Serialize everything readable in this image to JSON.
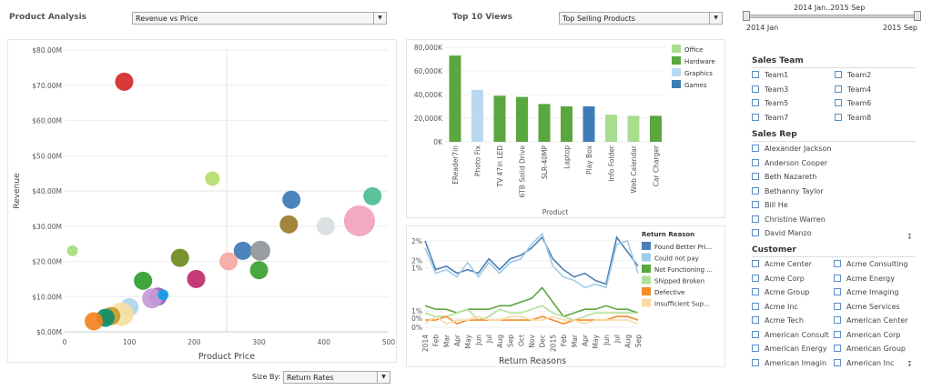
{
  "header": {
    "product_analysis_title": "Product Analysis",
    "scatter_select": "Revenue vs Price",
    "top10_title": "Top 10 Views",
    "top10_select": "Top Selling Products",
    "slider_range": "2014 Jan..2015 Sep",
    "slider_start": "2014 Jan",
    "slider_end": "2015 Sep"
  },
  "scatter": {
    "ylabel": "Revenue",
    "xlabel": "Product Price",
    "size_by_label": "Size By:",
    "size_by_select": "Return Rates",
    "chart_data": {
      "type": "scatter",
      "title": "Revenue vs Price",
      "xlabel": "Product Price",
      "ylabel": "Revenue",
      "xlim": [
        0,
        500
      ],
      "ylim": [
        0,
        80
      ],
      "x_ticks": [
        "0",
        "100",
        "200",
        "300",
        "400",
        "500"
      ],
      "y_ticks": [
        "$0.00M",
        "$10.00M",
        "$20.00M",
        "$30.00M",
        "$40.00M",
        "$50.00M",
        "$60.00M",
        "$70.00M",
        "$80.00M"
      ],
      "points": [
        {
          "x": 92,
          "y": 71,
          "r": 10,
          "color": "#d62728"
        },
        {
          "x": 228,
          "y": 43.5,
          "r": 8,
          "color": "#b5dc6e"
        },
        {
          "x": 12,
          "y": 23,
          "r": 6,
          "color": "#a4dc80"
        },
        {
          "x": 350,
          "y": 37.5,
          "r": 10,
          "color": "#3e7ab8"
        },
        {
          "x": 475,
          "y": 38.5,
          "r": 10,
          "color": "#4dbd93"
        },
        {
          "x": 346,
          "y": 30.5,
          "r": 10,
          "color": "#9b7a2a"
        },
        {
          "x": 403,
          "y": 30,
          "r": 10,
          "color": "#d9dde0"
        },
        {
          "x": 455,
          "y": 31.5,
          "r": 17,
          "color": "#f2a1bf"
        },
        {
          "x": 275,
          "y": 23,
          "r": 10,
          "color": "#3e7ab8"
        },
        {
          "x": 302,
          "y": 23,
          "r": 11,
          "color": "#8f969b"
        },
        {
          "x": 253,
          "y": 20,
          "r": 10,
          "color": "#f6a9a2"
        },
        {
          "x": 300,
          "y": 17.5,
          "r": 10,
          "color": "#39a030"
        },
        {
          "x": 178,
          "y": 21,
          "r": 10,
          "color": "#6d8a1e"
        },
        {
          "x": 203,
          "y": 15,
          "r": 10,
          "color": "#c02a6e"
        },
        {
          "x": 121,
          "y": 14.5,
          "r": 10,
          "color": "#319d2c"
        },
        {
          "x": 144,
          "y": 10,
          "r": 10,
          "color": "#9463b8"
        },
        {
          "x": 135,
          "y": 9.5,
          "r": 11,
          "color": "#c59ad8"
        },
        {
          "x": 152,
          "y": 10.5,
          "r": 6,
          "color": "#10a0e8"
        },
        {
          "x": 100,
          "y": 7,
          "r": 10,
          "color": "#aed4ef"
        },
        {
          "x": 88,
          "y": 5,
          "r": 13,
          "color": "#f7dfa0"
        },
        {
          "x": 72,
          "y": 4.5,
          "r": 10,
          "color": "#c49a2c"
        },
        {
          "x": 63,
          "y": 4,
          "r": 10,
          "color": "#0d8d6a"
        },
        {
          "x": 45,
          "y": 3,
          "r": 10,
          "color": "#f58220"
        }
      ]
    }
  },
  "bar_chart": {
    "xlabel": "Product",
    "chart_data": {
      "type": "bar",
      "title": "Top Selling Products",
      "xlabel": "Product",
      "ylabel": "",
      "ylim": [
        0,
        80000
      ],
      "y_ticks": [
        "0K",
        "20,000K",
        "40,000K",
        "60,000K",
        "80,000K"
      ],
      "categories": [
        "EReader7in",
        "Photo Fix",
        "TV 47in LED",
        "6TB Solid Drive",
        "SLR-40MP",
        "Laptop",
        "Play Box",
        "Info Folder",
        "Web Calendar",
        "Car Charger"
      ],
      "values": [
        73000,
        44000,
        39000,
        38000,
        32000,
        30000,
        30000,
        23000,
        22000,
        22000
      ],
      "bar_groups": [
        "Hardware",
        "Graphics",
        "Hardware",
        "Hardware",
        "Hardware",
        "Hardware",
        "Games",
        "Office",
        "Office",
        "Hardware"
      ],
      "legend": [
        {
          "name": "Office",
          "color": "#a8dd8f"
        },
        {
          "name": "Hardware",
          "color": "#5aa63f"
        },
        {
          "name": "Graphics",
          "color": "#b9d9f1"
        },
        {
          "name": "Games",
          "color": "#3d7db7"
        }
      ]
    }
  },
  "line_chart": {
    "xlabel": "Return Reasons",
    "legend_title": "Return Reason",
    "chart_data": {
      "type": "line",
      "title": "Return Reasons",
      "xlabel": "Return Reasons",
      "y_ticks": [
        "0%",
        "0%",
        "1%",
        "1%",
        "2%",
        "2%"
      ],
      "x": [
        "2014",
        "Feb",
        "Mar",
        "Apr",
        "May",
        "Jun",
        "Jul",
        "Aug",
        "Sep",
        "Oct",
        "Nov",
        "Dec",
        "2015",
        "Feb",
        "Mar",
        "Apr",
        "May",
        "Jun",
        "Jul",
        "Aug",
        "Sep"
      ],
      "series": [
        {
          "name": "Found Better Pri...",
          "color": "#4a7fb5",
          "values": [
            2.5,
            1.7,
            1.8,
            1.6,
            1.7,
            1.6,
            2.0,
            1.7,
            2.0,
            2.1,
            2.3,
            2.6,
            2.0,
            1.7,
            1.5,
            1.6,
            1.4,
            1.3,
            2.6,
            2.2,
            1.8
          ]
        },
        {
          "name": "Could not pay",
          "color": "#9fcbe8",
          "values": [
            2.3,
            1.6,
            1.7,
            1.5,
            1.9,
            1.5,
            1.9,
            1.6,
            1.9,
            2.0,
            2.4,
            2.7,
            1.8,
            1.5,
            1.4,
            1.2,
            1.3,
            1.2,
            2.4,
            2.5,
            1.6
          ]
        },
        {
          "name": "Not Functioning ...",
          "color": "#5aa63f",
          "values": [
            0.7,
            0.6,
            0.6,
            0.5,
            0.6,
            0.6,
            0.6,
            0.7,
            0.7,
            0.8,
            0.9,
            1.2,
            0.8,
            0.4,
            0.5,
            0.6,
            0.6,
            0.7,
            0.6,
            0.6,
            0.5
          ]
        },
        {
          "name": "Shipped Broken",
          "color": "#b3e09a",
          "values": [
            0.5,
            0.4,
            0.4,
            0.5,
            0.6,
            0.3,
            0.4,
            0.6,
            0.5,
            0.5,
            0.6,
            0.7,
            0.5,
            0.4,
            0.3,
            0.4,
            0.5,
            0.5,
            0.5,
            0.5,
            0.5
          ]
        },
        {
          "name": "Defective",
          "color": "#f58c2a",
          "values": [
            0.3,
            0.3,
            0.4,
            0.2,
            0.3,
            0.3,
            0.3,
            0.3,
            0.3,
            0.3,
            0.3,
            0.4,
            0.3,
            0.2,
            0.3,
            0.3,
            0.3,
            0.3,
            0.4,
            0.4,
            0.3
          ]
        },
        {
          "name": "Insufficient Sup...",
          "color": "#f9dca5",
          "values": [
            0.2,
            0.4,
            0.2,
            0.3,
            0.3,
            0.4,
            0.3,
            0.3,
            0.4,
            0.4,
            0.3,
            0.3,
            0.4,
            0.3,
            0.3,
            0.2,
            0.3,
            0.3,
            0.3,
            0.3,
            0.2
          ]
        }
      ]
    }
  },
  "filters": {
    "sales_team_title": "Sales Team",
    "sales_team": [
      "Team1",
      "Team2",
      "Team3",
      "Team4",
      "Team5",
      "Team6",
      "Team7",
      "Team8"
    ],
    "sales_rep_title": "Sales Rep",
    "sales_rep": [
      "Alexander Jackson",
      "Anderson Cooper",
      "Beth Nazareth",
      "Bethanny Taylor",
      "Bill He",
      "Christine Warren",
      "David Manzo"
    ],
    "customer_title": "Customer",
    "customer": [
      "Acme Center",
      "Acme Consulting",
      "Acme Corp",
      "Acme Energy",
      "Acme Group",
      "Acme Imaging",
      "Acme Inc",
      "Acme Services",
      "Acme Tech",
      "American Center",
      "American Consult",
      "American Corp",
      "American Energy",
      "American Group",
      "American Imagin",
      "American Inc"
    ]
  }
}
